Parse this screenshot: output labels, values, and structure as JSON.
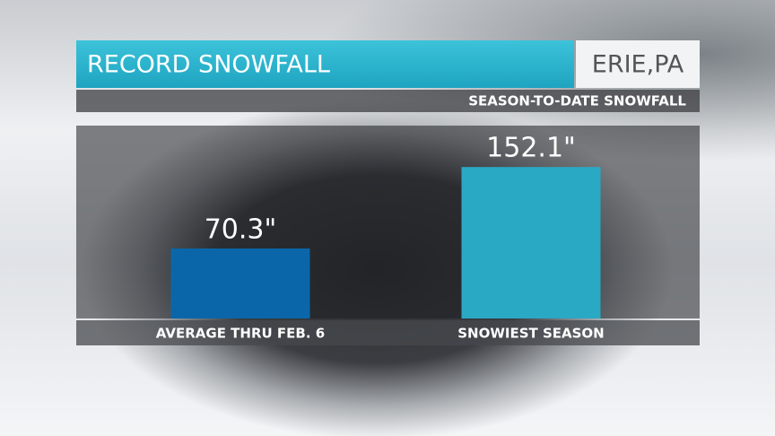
{
  "chart_data": {
    "type": "bar",
    "title": "RECORD SNOWFALL",
    "location": "ERIE,PA",
    "subtitle": "SEASON-TO-DATE SNOWFALL",
    "categories": [
      "AVERAGE THRU FEB. 6",
      "SNOWIEST SEASON"
    ],
    "values": [
      70.3,
      152.1
    ],
    "value_labels": [
      "70.3\"",
      "152.1\""
    ],
    "colors": [
      "#0b66a9",
      "#2aa9c5"
    ]
  }
}
